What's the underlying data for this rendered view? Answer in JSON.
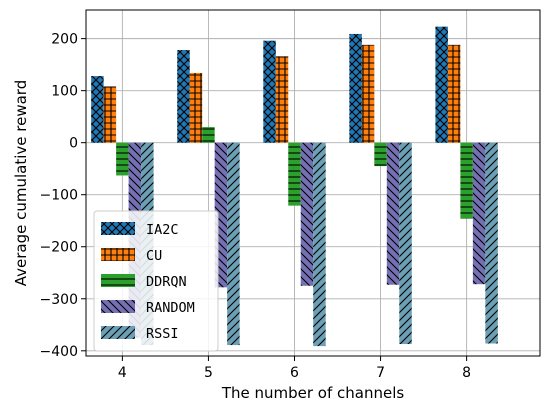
{
  "chart_data": {
    "type": "bar",
    "title": "",
    "xlabel": "The number of channels",
    "ylabel": "Average cumulative reward",
    "categories": [
      "4",
      "5",
      "6",
      "7",
      "8"
    ],
    "ylim": [
      -410,
      255
    ],
    "yticks": [
      -400,
      -300,
      -200,
      -100,
      0,
      100,
      200
    ],
    "yticklabels": [
      "−400",
      "−300",
      "−200",
      "−100",
      "0",
      "100",
      "200"
    ],
    "grid": true,
    "legend_position": "lower-left",
    "series": [
      {
        "name": "IA2C",
        "color": "#1f77b4",
        "hatch": "x-cross",
        "values": [
          128,
          178,
          196,
          209,
          223
        ]
      },
      {
        "name": "CU",
        "color": "#ff7f0e",
        "hatch": "plus-grid",
        "values": [
          108,
          134,
          166,
          188,
          188
        ]
      },
      {
        "name": "DDRQN",
        "color": "#2ca02c",
        "hatch": "horizontal",
        "values": [
          -63,
          30,
          -121,
          -45,
          -146
        ]
      },
      {
        "name": "RANDOM",
        "color": "#7570b3",
        "hatch": "backslash",
        "values": [
          -375,
          -278,
          -275,
          -273,
          -272
        ]
      },
      {
        "name": "RSSI",
        "color": "#6a9fb5",
        "hatch": "slash",
        "values": [
          -389,
          -389,
          -391,
          -387,
          -386
        ]
      }
    ]
  }
}
